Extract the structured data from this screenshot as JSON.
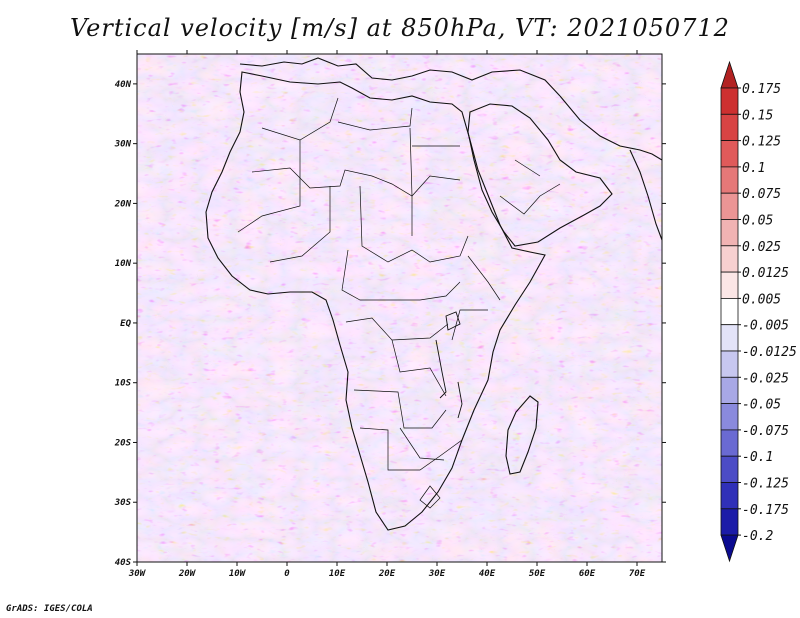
{
  "title": "Vertical velocity [m/s] at 850hPa, VT: 2021050712",
  "footer": "GrADS: IGES/COLA",
  "map": {
    "lon_ticks": [
      "30W",
      "20W",
      "10W",
      "0",
      "10E",
      "20E",
      "30E",
      "40E",
      "50E",
      "60E",
      "70E"
    ],
    "lat_ticks": [
      "40N",
      "30N",
      "20N",
      "10N",
      "EQ",
      "10S",
      "20S",
      "30S",
      "40S"
    ],
    "lon_range": [
      -30,
      75
    ],
    "lat_range": [
      -40,
      45
    ]
  },
  "colorbar": {
    "labels": [
      "0.175",
      "0.15",
      "0.125",
      "0.1",
      "0.075",
      "0.05",
      "0.025",
      "0.0125",
      "0.005",
      "-0.005",
      "-0.0125",
      "-0.025",
      "-0.05",
      "-0.075",
      "-0.1",
      "-0.125",
      "-0.175",
      "-0.2"
    ],
    "colors": [
      "#b22222",
      "#cd3030",
      "#d84444",
      "#e05a5a",
      "#e57878",
      "#eb9595",
      "#f1b3b3",
      "#f7d0d0",
      "#fbe6e6",
      "#ffffff",
      "#e3e3f8",
      "#c7c7f0",
      "#a8a8e6",
      "#8a8add",
      "#6a6ad2",
      "#4c4cc6",
      "#3030b8",
      "#1c1ca8",
      "#0b0b90"
    ]
  }
}
